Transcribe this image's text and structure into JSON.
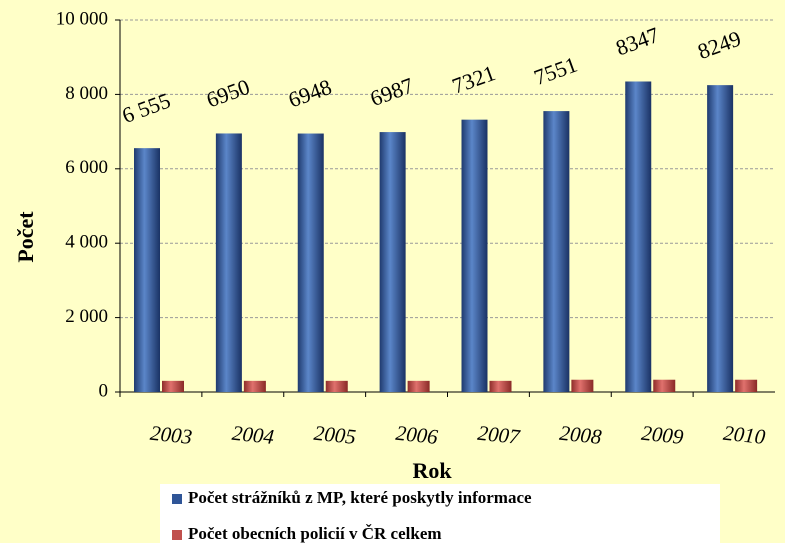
{
  "chart_data": {
    "type": "bar",
    "x_label": "Rok",
    "y_label": "Počet",
    "categories": [
      "2003",
      "2004",
      "2005",
      "2006",
      "2007",
      "2008",
      "2009",
      "2010"
    ],
    "series": [
      {
        "name": "Počet strážníků z MP, které poskytly informace",
        "color": "#2f5597",
        "values": [
          6555,
          6950,
          6948,
          6987,
          7321,
          7551,
          8347,
          8249
        ],
        "value_labels": [
          "6 555",
          "6950",
          "6948",
          "6987",
          "7321",
          "7551",
          "8347",
          "8249"
        ]
      },
      {
        "name": "Počet obecních policií  v ČR celkem",
        "color": "#c0504d",
        "values": [
          300,
          300,
          300,
          300,
          300,
          330,
          330,
          330
        ]
      }
    ],
    "ylim": [
      0,
      10000
    ],
    "yticks": [
      0,
      {
        "value": 2000,
        "label": "2 000"
      },
      {
        "value": 4000,
        "label": "4 000"
      },
      {
        "value": 6000,
        "label": "6 000"
      },
      {
        "value": 8000,
        "label": "8 000"
      },
      {
        "value": 10000,
        "label": "10 000"
      }
    ],
    "grid": true
  }
}
